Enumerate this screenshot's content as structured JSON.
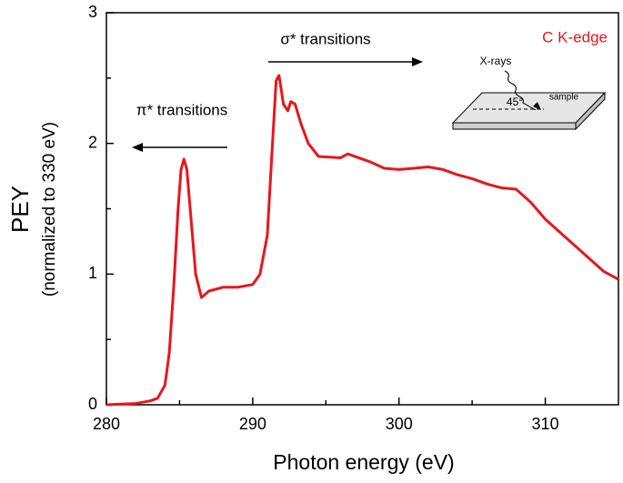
{
  "chart_data": {
    "type": "line",
    "x_label": "Photon energy (eV)",
    "y_label": "PEY",
    "y_label_sub": "(normalized to 330 eV)",
    "annotations": [
      "π* transitions",
      "σ* transitions"
    ],
    "inset_labels": [
      "X-rays",
      "45°",
      "sample"
    ],
    "x": [
      280,
      282,
      283,
      283.5,
      284,
      284.3,
      284.6,
      284.9,
      285.1,
      285.3,
      285.5,
      285.8,
      286.1,
      286.5,
      287,
      288,
      289,
      290,
      290.5,
      291,
      291.3,
      291.6,
      291.8,
      292.1,
      292.4,
      292.6,
      292.9,
      293.3,
      293.8,
      294.5,
      296,
      296.5,
      297,
      298,
      299,
      300,
      301,
      302,
      303,
      304,
      305,
      306,
      307,
      308,
      309,
      310,
      311,
      312,
      313,
      314,
      315
    ],
    "series": [
      {
        "name": "C K-edge",
        "color": "#e8161b",
        "values": [
          0.0,
          0.01,
          0.03,
          0.05,
          0.15,
          0.4,
          0.9,
          1.5,
          1.8,
          1.88,
          1.8,
          1.4,
          1.0,
          0.82,
          0.87,
          0.9,
          0.9,
          0.92,
          1.0,
          1.3,
          1.9,
          2.48,
          2.52,
          2.3,
          2.25,
          2.32,
          2.3,
          2.15,
          2.0,
          1.9,
          1.89,
          1.92,
          1.9,
          1.86,
          1.81,
          1.8,
          1.81,
          1.82,
          1.8,
          1.76,
          1.73,
          1.69,
          1.66,
          1.65,
          1.55,
          1.42,
          1.32,
          1.22,
          1.12,
          1.02,
          0.96
        ]
      }
    ],
    "xlim": [
      280,
      315
    ],
    "xticks": [
      280,
      290,
      300,
      310
    ],
    "xminorticks": [
      285,
      295,
      305
    ],
    "ylim": [
      0,
      3
    ],
    "yticks": [
      0,
      1,
      2,
      3
    ],
    "yminorticks": [
      0.5,
      1.5,
      2.5
    ]
  }
}
